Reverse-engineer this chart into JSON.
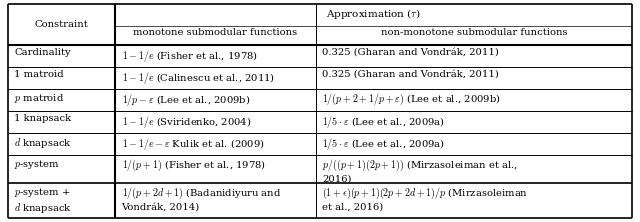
{
  "figsize": [
    6.4,
    2.22
  ],
  "dpi": 100,
  "bg_color": "#ffffff",
  "fontsize": 7.2,
  "col_boundaries": [
    0.0,
    0.172,
    0.493,
    1.0
  ],
  "header": {
    "title": "Approximation ($\\tau$)",
    "col1_sub": "monotone submodular functions",
    "col2_sub": "non-monotone submodular functions",
    "col0_label": "Constraint"
  },
  "rows_col0": [
    "Cardinality",
    "1 matroid",
    "$p$ matroid",
    "1 knapsack",
    "$d$ knapsack",
    "$p$-system",
    "$p$-system +\n$d$ knapsack"
  ],
  "rows_col1": [
    "$1-1/e$ (Fisher et al., 1978)",
    "$1-1/e$ (Calinescu et al., 2011)",
    "$1/p-\\varepsilon$ (Lee et al., 2009b)",
    "$1-1/e$ (Sviridenko, 2004)",
    "$1-1/e-\\varepsilon$ Kulik et al. (2009)",
    "$1/(p+1)$ (Fisher et al., 1978)",
    "$1/(p+2d+1)$ (Badanidiyuru and\nVondrák, 2014)"
  ],
  "rows_col2": [
    "0.325 (Gharan and Vondrák, 2011)",
    "0.325 (Gharan and Vondrák, 2011)",
    "$1/(p+2+1/p+\\varepsilon)$ (Lee et al., 2009b)",
    "$1/5\\cdot\\varepsilon$ (Lee et al., 2009a)",
    "$1/5\\cdot\\varepsilon$ (Lee et al., 2009a)",
    "$p/((p+1)(2p+1))$ (Mirzasoleiman et al.,\n2016)",
    "$(1+\\epsilon)(p+1)(2p+2d+1)/p$ (Mirzasoleiman\net al., 2016)"
  ]
}
